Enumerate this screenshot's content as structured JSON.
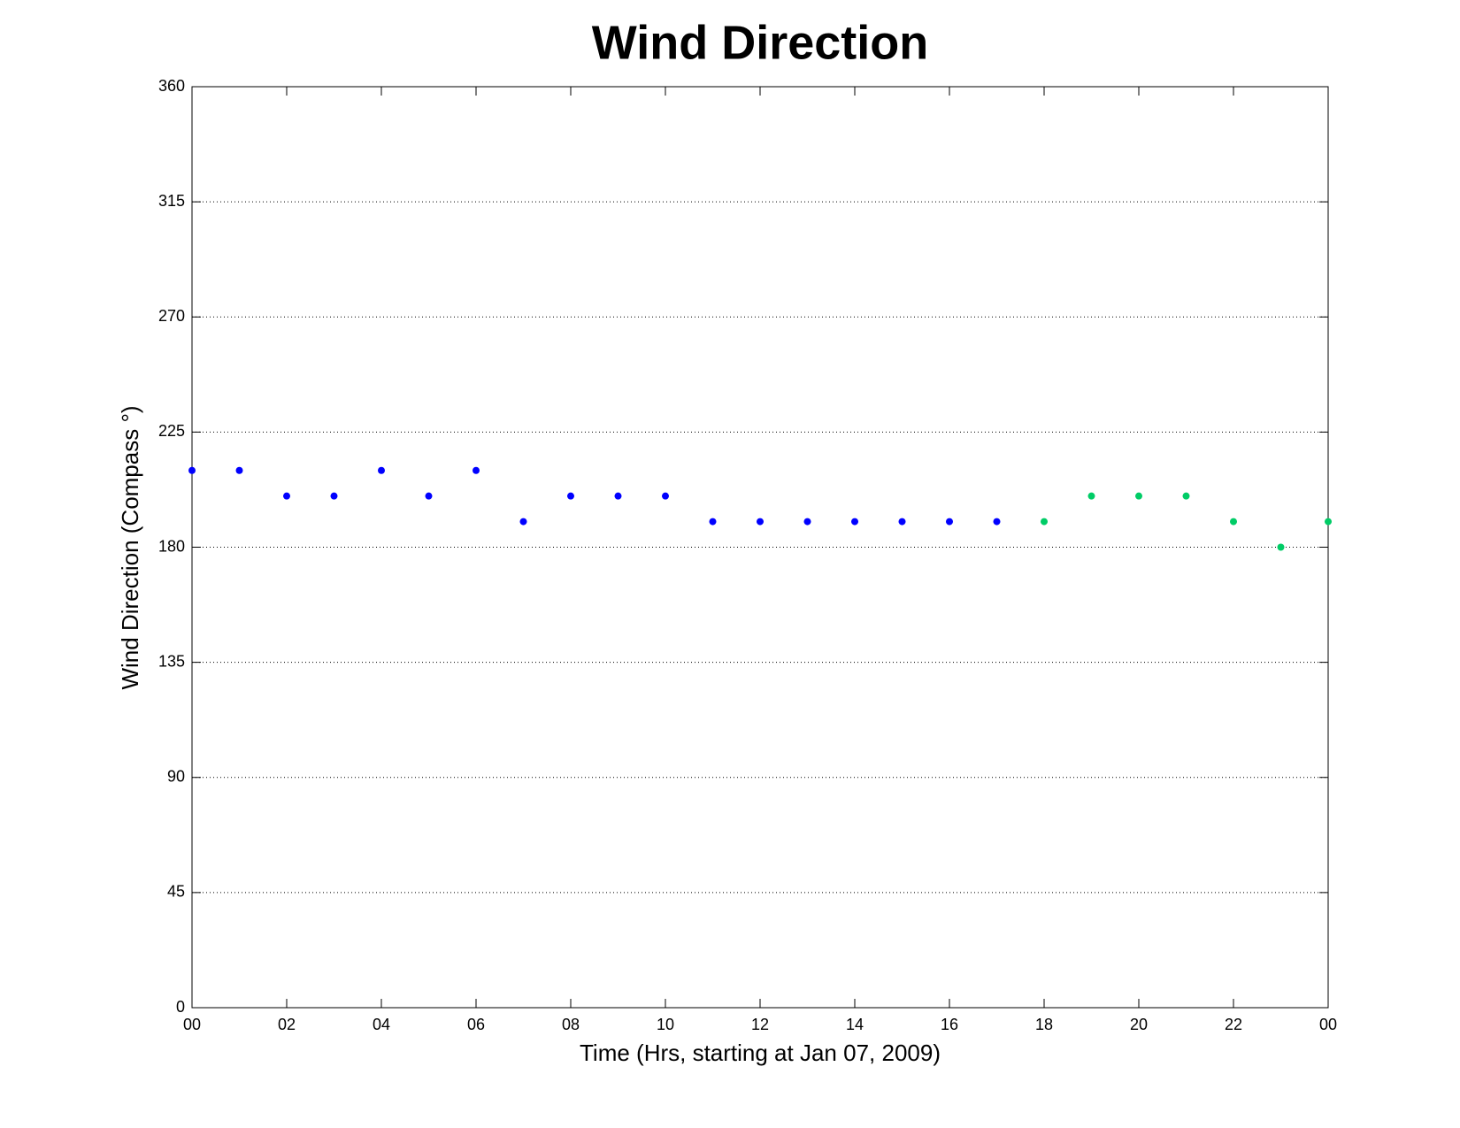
{
  "chart_data": {
    "type": "scatter",
    "title": "Wind Direction",
    "x_label": "Time (Hrs, starting at Jan 07, 2009)",
    "y_label": "Wind Direction (Compass °)",
    "xlim": [
      0,
      24
    ],
    "xticks": [
      {
        "value": 0,
        "label": "00"
      },
      {
        "value": 2,
        "label": "02"
      },
      {
        "value": 4,
        "label": "04"
      },
      {
        "value": 6,
        "label": "06"
      },
      {
        "value": 8,
        "label": "08"
      },
      10,
      12,
      14,
      16,
      18,
      20,
      22,
      {
        "value": 24,
        "label": "00"
      }
    ],
    "ylim": [
      0,
      360
    ],
    "yticks": [
      0,
      45,
      90,
      135,
      180,
      225,
      270,
      315,
      360
    ],
    "grid": true,
    "series": [
      {
        "color": "#0000ff",
        "x": [
          0,
          1,
          2,
          3,
          4,
          5,
          6,
          7,
          8,
          9,
          10,
          11,
          12,
          13,
          14,
          15,
          16,
          17
        ],
        "values": [
          210,
          210,
          200,
          200,
          210,
          200,
          210,
          190,
          200,
          200,
          200,
          190,
          190,
          190,
          190,
          190,
          190,
          190
        ]
      },
      {
        "color": "#00cc66",
        "x": [
          18,
          19,
          20,
          21,
          22,
          23,
          24
        ],
        "values": [
          190,
          200,
          200,
          200,
          190,
          180,
          190
        ]
      }
    ]
  }
}
